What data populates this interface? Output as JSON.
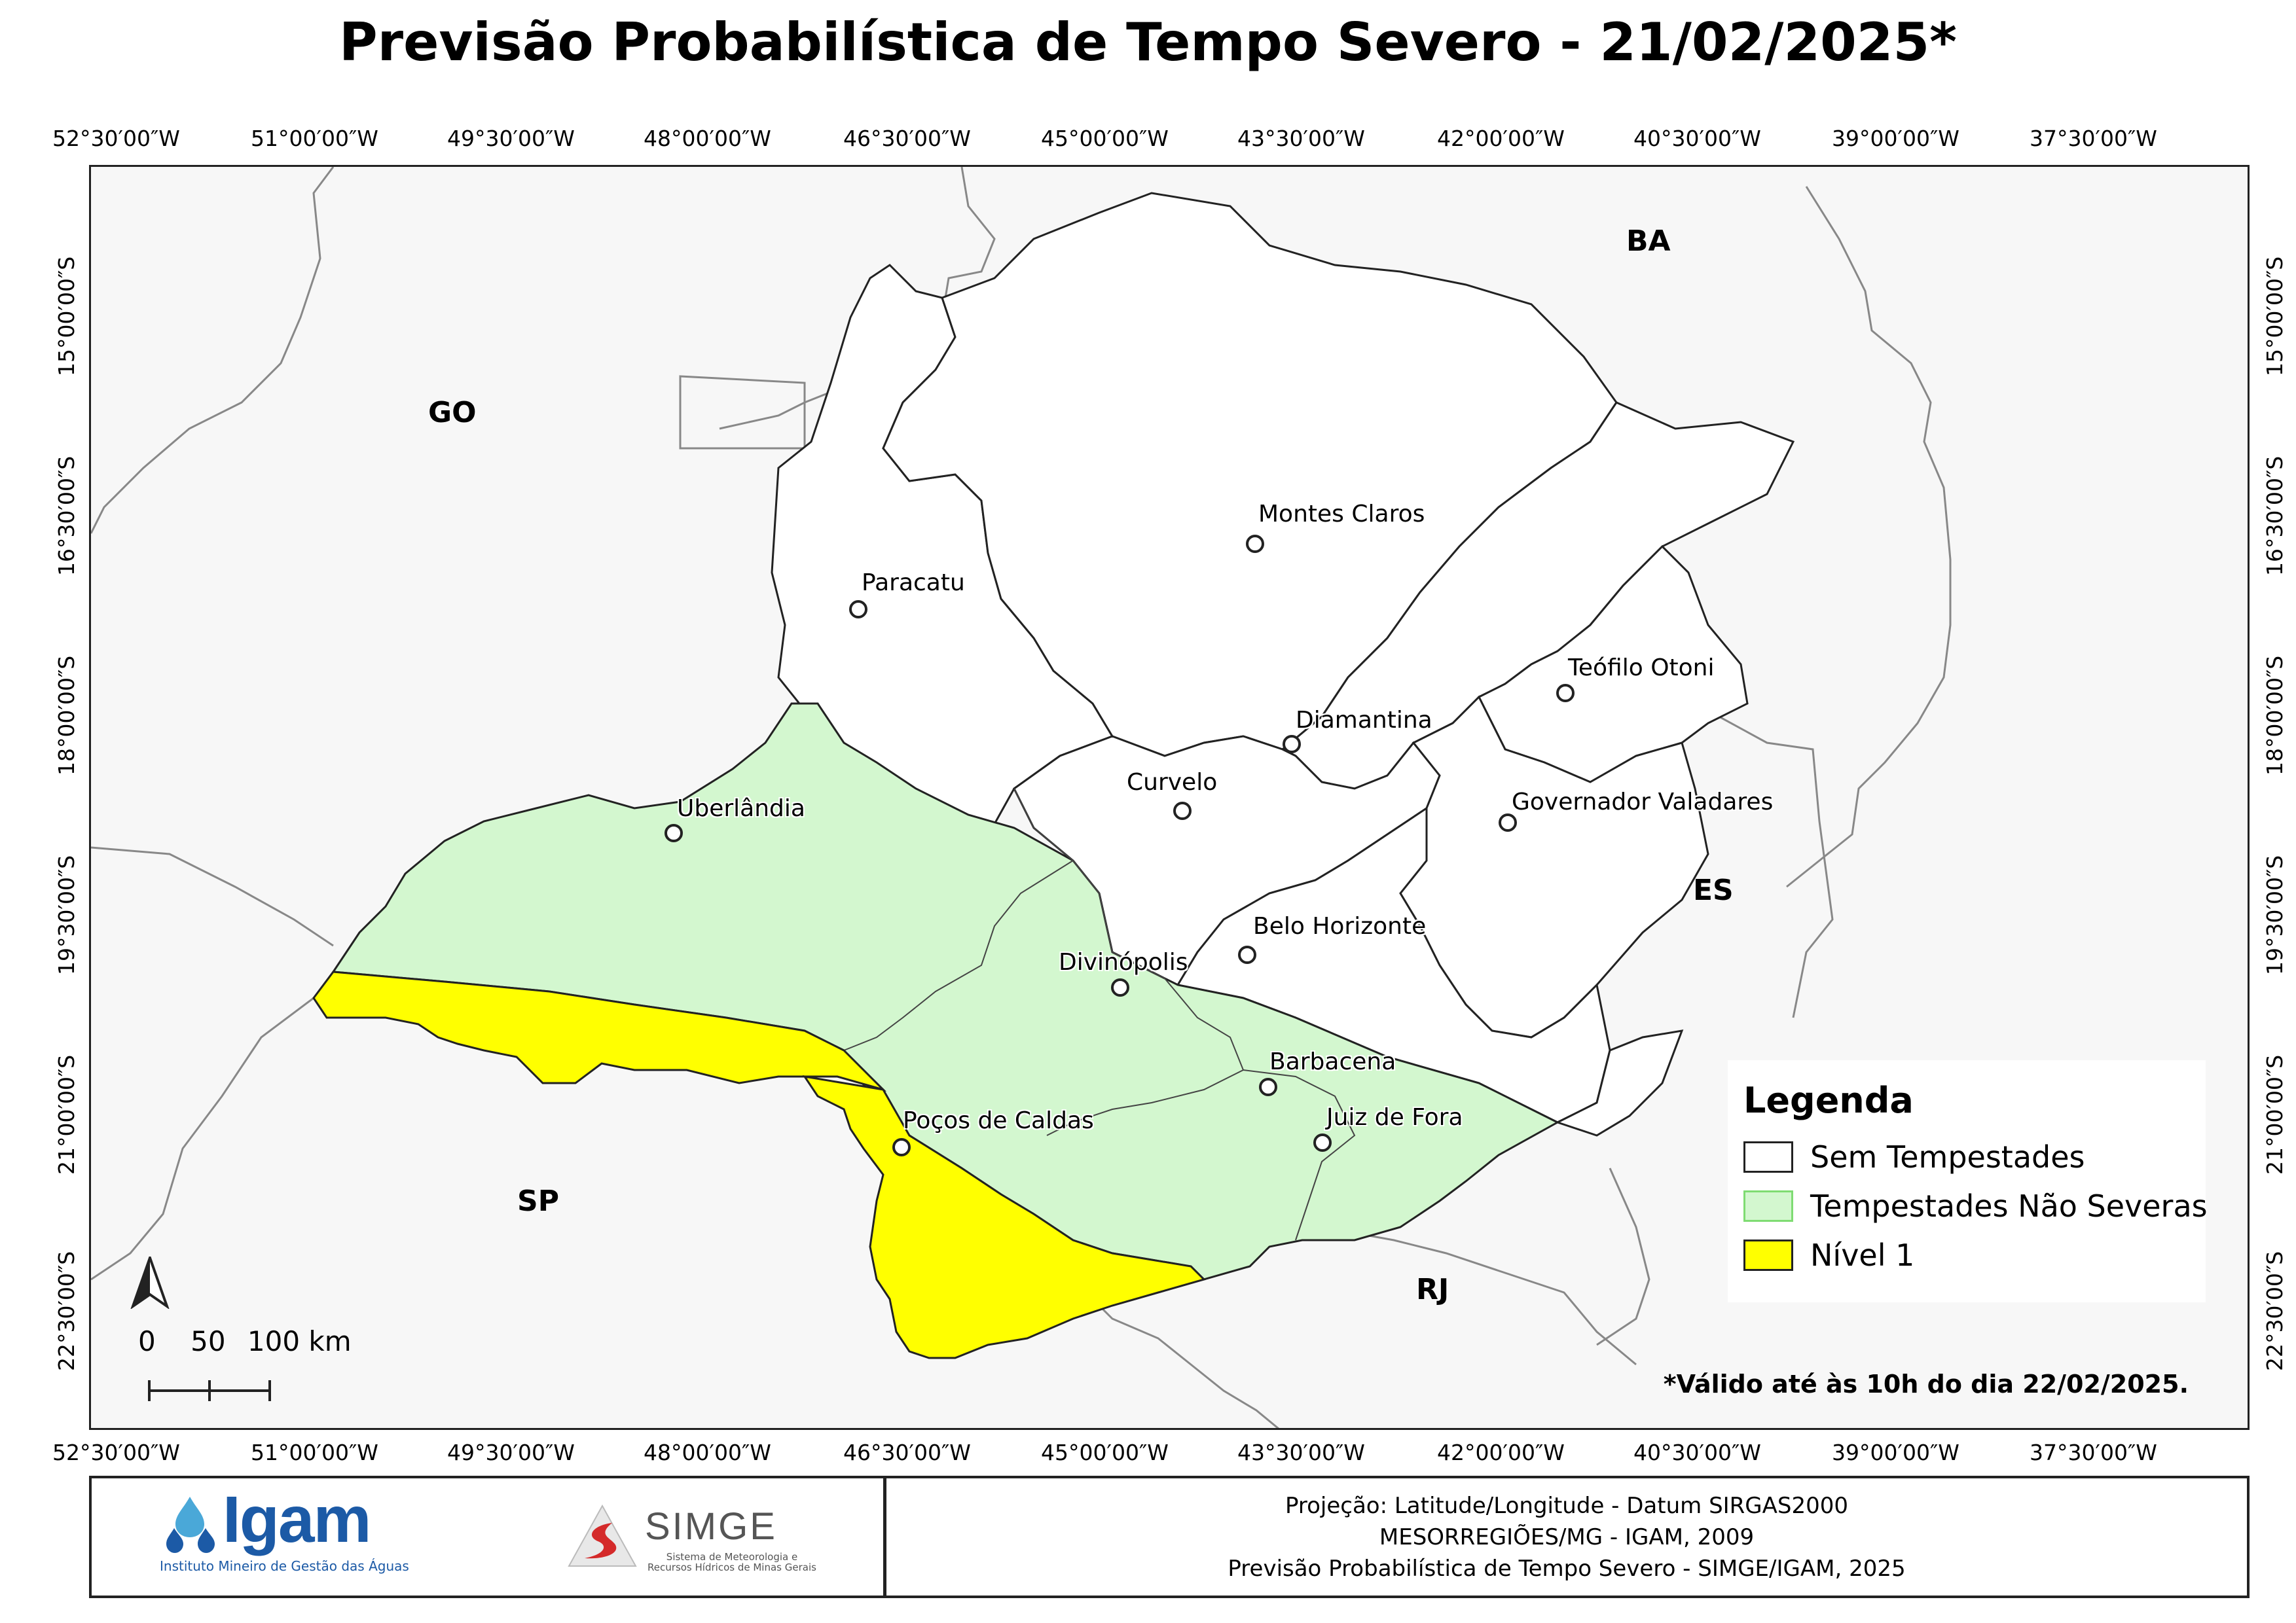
{
  "title": "Previsão Probabilística de Tempo Severo - 21/02/2025*",
  "lon_labels": [
    "52°30′00″W",
    "51°00′00″W",
    "49°30′00″W",
    "48°00′00″W",
    "46°30′00″W",
    "45°00′00″W",
    "43°30′00″W",
    "42°00′00″W",
    "40°30′00″W",
    "39°00′00″W",
    "37°30′00″W"
  ],
  "lat_labels": [
    "15°00′00″S",
    "16°30′00″S",
    "18°00′00″S",
    "19°30′00″S",
    "21°00′00″S",
    "22°30′00″S"
  ],
  "states": [
    "GO",
    "BA",
    "ES",
    "SP",
    "RJ"
  ],
  "cities": [
    "Montes Claros",
    "Paracatu",
    "Teófilo Otoni",
    "Diamantina",
    "Curvelo",
    "Governador Valadares",
    "Uberlândia",
    "Belo Horizonte",
    "Divinópolis",
    "Barbacena",
    "Juiz de Fora",
    "Poços de Caldas"
  ],
  "legend": {
    "title": "Legenda",
    "items": [
      {
        "label": "Sem Tempestades",
        "color": "#ffffff"
      },
      {
        "label": "Tempestades Não Severas",
        "color": "#d3f7cf"
      },
      {
        "label": "Nível 1",
        "color": "#ffff00"
      }
    ]
  },
  "valid_note": "*Válido até às 10h do dia 22/02/2025.",
  "scale": {
    "label_0": "0",
    "label_50": "50",
    "label_100": "100 km"
  },
  "footer": {
    "igam_name": "Igam",
    "igam_subtitle": "Instituto Mineiro de Gestão das Águas",
    "simge_name": "SIMGE",
    "simge_subtitle": "Sistema de Meteorologia e Recursos Hídricos de Minas Gerais",
    "line1": "Projeção: Latitude/Longitude - Datum SIRGAS2000",
    "line2": "MESORREGIÕES/MG - IGAM, 2009",
    "line3": "Previsão Probabilística de Tempo Severo - SIMGE/IGAM, 2025"
  },
  "colors": {
    "border": "#222222",
    "outside": "#f7f7f7",
    "green": "#d3f7cf",
    "yellow": "#ffff00",
    "igam_blue": "#1c5aa6",
    "simge_red": "#d42a2a"
  }
}
